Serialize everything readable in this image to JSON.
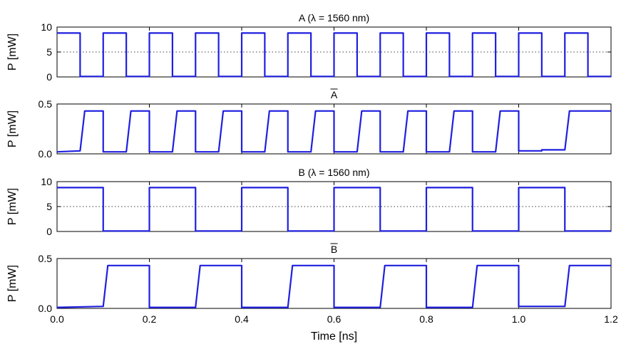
{
  "chart_data": [
    {
      "type": "line",
      "title": "A (λ = 1560 nm)",
      "ylabel": "P [mW]",
      "xlim": [
        0,
        1.2
      ],
      "ylim": [
        0,
        10
      ],
      "yticks": [
        0,
        5,
        10
      ],
      "ytick_labels": [
        "0",
        "5",
        "10"
      ],
      "grid": "horizontal dotted at 5 and 10",
      "color": "#1f1fe0",
      "series": [
        {
          "x": [
            0,
            0.05,
            0.05,
            0.1,
            0.1,
            0.15,
            0.15,
            0.2,
            0.2,
            0.25,
            0.25,
            0.3,
            0.3,
            0.35,
            0.35,
            0.4,
            0.4,
            0.45,
            0.45,
            0.5,
            0.5,
            0.55,
            0.55,
            0.6,
            0.6,
            0.65,
            0.65,
            0.7,
            0.7,
            0.75,
            0.75,
            0.8,
            0.8,
            0.85,
            0.85,
            0.9,
            0.9,
            0.95,
            0.95,
            1.0,
            1.0,
            1.05,
            1.05,
            1.1,
            1.1,
            1.15,
            1.15,
            1.2
          ],
          "y": [
            8.8,
            8.8,
            0.1,
            0.1,
            8.8,
            8.8,
            0.1,
            0.1,
            8.8,
            8.8,
            0.1,
            0.1,
            8.8,
            8.8,
            0.1,
            0.1,
            8.8,
            8.8,
            0.1,
            0.1,
            8.8,
            8.8,
            0.1,
            0.1,
            8.8,
            8.8,
            0.1,
            0.1,
            8.8,
            8.8,
            0.1,
            0.1,
            8.8,
            8.8,
            0.1,
            0.1,
            8.8,
            8.8,
            0.1,
            0.1,
            8.8,
            8.8,
            0.1,
            0.1,
            8.8,
            8.8,
            0.1,
            0.1
          ]
        }
      ]
    },
    {
      "type": "line",
      "title": "A",
      "title_overline": true,
      "ylabel": "P [mW]",
      "xlim": [
        0,
        1.2
      ],
      "ylim": [
        0,
        0.5
      ],
      "yticks": [
        0,
        0.5
      ],
      "ytick_labels": [
        "0.0",
        "0.5"
      ],
      "grid": "none",
      "color": "#1f1fe0",
      "series": [
        {
          "x": [
            0,
            0.05,
            0.06,
            0.1,
            0.1,
            0.15,
            0.16,
            0.2,
            0.2,
            0.25,
            0.26,
            0.3,
            0.3,
            0.35,
            0.36,
            0.4,
            0.4,
            0.45,
            0.46,
            0.5,
            0.5,
            0.55,
            0.56,
            0.6,
            0.6,
            0.65,
            0.66,
            0.7,
            0.7,
            0.75,
            0.76,
            0.8,
            0.8,
            0.85,
            0.86,
            0.9,
            0.9,
            0.95,
            0.96,
            1.0,
            1.0,
            1.05,
            1.05,
            1.1,
            1.11,
            1.2
          ],
          "y": [
            0.02,
            0.03,
            0.43,
            0.43,
            0.02,
            0.02,
            0.43,
            0.43,
            0.02,
            0.02,
            0.43,
            0.43,
            0.02,
            0.02,
            0.43,
            0.43,
            0.02,
            0.02,
            0.43,
            0.43,
            0.02,
            0.02,
            0.43,
            0.43,
            0.02,
            0.02,
            0.43,
            0.43,
            0.02,
            0.02,
            0.43,
            0.43,
            0.02,
            0.02,
            0.43,
            0.43,
            0.02,
            0.02,
            0.43,
            0.43,
            0.03,
            0.03,
            0.04,
            0.04,
            0.43,
            0.43
          ]
        }
      ]
    },
    {
      "type": "line",
      "title": "B (λ = 1560 nm)",
      "ylabel": "P [mW]",
      "xlim": [
        0,
        1.2
      ],
      "ylim": [
        0,
        10
      ],
      "yticks": [
        0,
        5,
        10
      ],
      "ytick_labels": [
        "0",
        "5",
        "10"
      ],
      "grid": "horizontal dotted at 5 and 10",
      "color": "#1f1fe0",
      "series": [
        {
          "x": [
            0,
            0.1,
            0.1,
            0.2,
            0.2,
            0.3,
            0.3,
            0.4,
            0.4,
            0.5,
            0.5,
            0.6,
            0.6,
            0.7,
            0.7,
            0.8,
            0.8,
            0.9,
            0.9,
            1.0,
            1.0,
            1.1,
            1.1,
            1.2
          ],
          "y": [
            8.8,
            8.8,
            0.1,
            0.1,
            8.8,
            8.8,
            0.1,
            0.1,
            8.8,
            8.8,
            0.1,
            0.1,
            8.8,
            8.8,
            0.1,
            0.1,
            8.8,
            8.8,
            0.1,
            0.1,
            8.8,
            8.8,
            0.1,
            0.1
          ]
        }
      ]
    },
    {
      "type": "line",
      "title": "B",
      "title_overline": true,
      "ylabel": "P [mW]",
      "xlabel": "Time [ns]",
      "xlim": [
        0,
        1.2
      ],
      "ylim": [
        0,
        0.5
      ],
      "yticks": [
        0,
        0.5
      ],
      "ytick_labels": [
        "0.0",
        "0.5"
      ],
      "xticks": [
        0,
        0.2,
        0.4,
        0.6,
        0.8,
        1.0,
        1.2
      ],
      "xtick_labels": [
        "0.0",
        "0.2",
        "0.4",
        "0.6",
        "0.8",
        "1.0",
        "1.2"
      ],
      "grid": "none",
      "color": "#1f1fe0",
      "series": [
        {
          "x": [
            0,
            0.1,
            0.11,
            0.2,
            0.2,
            0.3,
            0.31,
            0.4,
            0.4,
            0.5,
            0.51,
            0.6,
            0.6,
            0.7,
            0.71,
            0.8,
            0.8,
            0.9,
            0.91,
            1.0,
            1.0,
            1.1,
            1.11,
            1.2
          ],
          "y": [
            0.01,
            0.02,
            0.43,
            0.43,
            0.01,
            0.01,
            0.43,
            0.43,
            0.01,
            0.01,
            0.43,
            0.43,
            0.01,
            0.01,
            0.43,
            0.43,
            0.01,
            0.01,
            0.43,
            0.43,
            0.02,
            0.02,
            0.43,
            0.43
          ]
        }
      ]
    }
  ]
}
